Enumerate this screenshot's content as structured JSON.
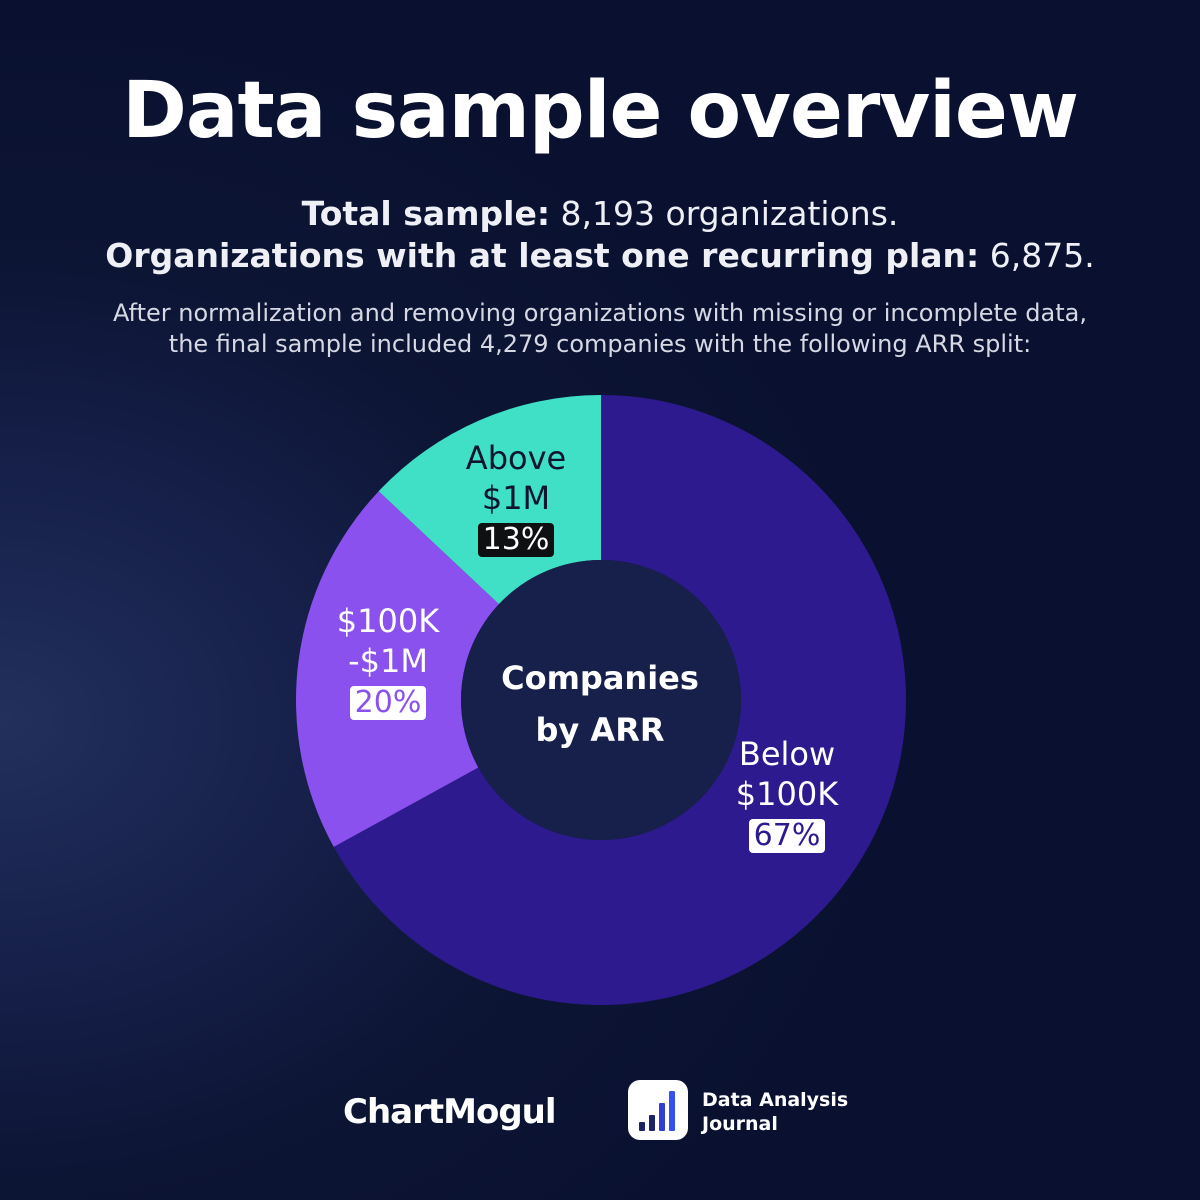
{
  "title": "Data sample overview",
  "stats": {
    "total_label": "Total sample:",
    "total_value": "8,193 organizations.",
    "recurring_label": "Organizations with at least one recurring plan:",
    "recurring_value": "6,875."
  },
  "note": "After normalization and removing organizations with missing or incomplete data, the final sample included 4,279 companies with the following ARR split:",
  "chart_data": {
    "type": "pie",
    "style": "donut",
    "center_label_line1": "Companies",
    "center_label_line2": "by ARR",
    "slices": [
      {
        "label_line1": "Below",
        "label_line2": "$100K",
        "value": 67,
        "value_label": "67%",
        "color": "#2d1a8e"
      },
      {
        "label_line1": "$100K",
        "label_line2": "-$1M",
        "value": 20,
        "value_label": "20%",
        "color": "#8b51ee"
      },
      {
        "label_line1": "Above",
        "label_line2": "$1M",
        "value": 13,
        "value_label": "13%",
        "color": "#3fe0c5"
      }
    ]
  },
  "brands": {
    "chartmogul": "ChartMogul",
    "daj_line1": "Data Analysis",
    "daj_line2": "Journal"
  }
}
